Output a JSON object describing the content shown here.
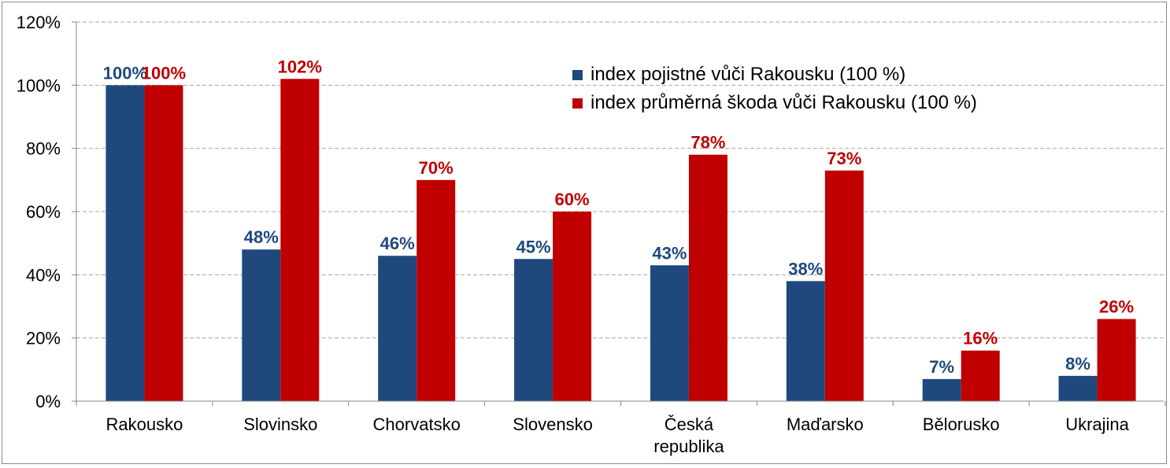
{
  "chart_data": {
    "type": "bar",
    "categories": [
      "Rakousko",
      "Slovinsko",
      "Chorvatsko",
      "Slovensko",
      "Česká republika",
      "Maďarsko",
      "Bělorusko",
      "Ukrajina"
    ],
    "category_label_lines": [
      [
        "Rakousko"
      ],
      [
        "Slovinsko"
      ],
      [
        "Chorvatsko"
      ],
      [
        "Slovensko"
      ],
      [
        "Česká",
        "republika"
      ],
      [
        "Maďarsko"
      ],
      [
        "Bělorusko"
      ],
      [
        "Ukrajina"
      ]
    ],
    "series": [
      {
        "name": "index pojistné vůči Rakousku (100 %)",
        "color": "#1f497d",
        "values": [
          100,
          48,
          46,
          45,
          43,
          38,
          7,
          8
        ],
        "labels": [
          "100%",
          "48%",
          "46%",
          "45%",
          "43%",
          "38%",
          "7%",
          "8%"
        ]
      },
      {
        "name": "index průměrná škoda vůči Rakousku (100 %)",
        "color": "#c00000",
        "values": [
          100,
          102,
          70,
          60,
          78,
          73,
          16,
          26
        ],
        "labels": [
          "100%",
          "102%",
          "70%",
          "60%",
          "78%",
          "73%",
          "16%",
          "26%"
        ]
      }
    ],
    "y_ticks": [
      "0%",
      "20%",
      "40%",
      "60%",
      "80%",
      "100%",
      "120%"
    ],
    "ylim": [
      0,
      120
    ],
    "grid": true,
    "legend_position": "top-right",
    "title": "",
    "xlabel": "",
    "ylabel": ""
  }
}
